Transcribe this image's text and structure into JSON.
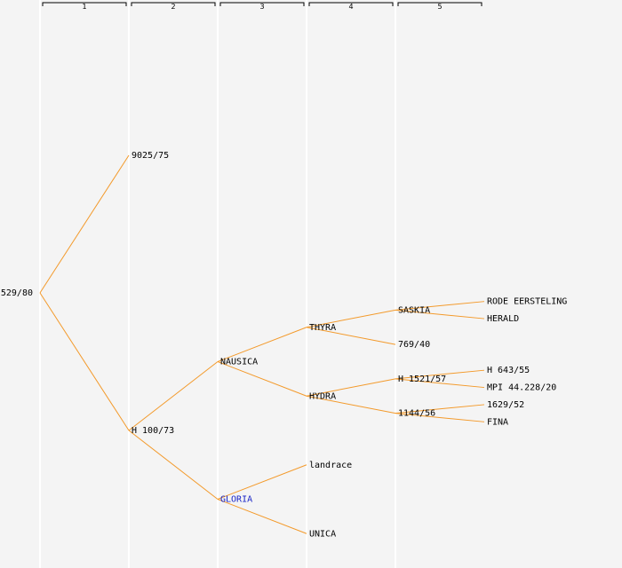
{
  "generations": [
    "1",
    "2",
    "3",
    "4",
    "5"
  ],
  "nodes": [
    {
      "id": "root",
      "label": "529/80",
      "gen": 0,
      "parent": null,
      "link": false
    },
    {
      "id": "n9025",
      "label": "9025/75",
      "gen": 1,
      "parent": "root",
      "link": false
    },
    {
      "id": "nh100",
      "label": "H 100/73",
      "gen": 1,
      "parent": "root",
      "link": false
    },
    {
      "id": "nausica",
      "label": "NAUSICA",
      "gen": 2,
      "parent": "nh100",
      "link": false
    },
    {
      "id": "gloria",
      "label": "GLORIA",
      "gen": 2,
      "parent": "nh100",
      "link": true
    },
    {
      "id": "thyra",
      "label": "THYRA",
      "gen": 3,
      "parent": "nausica",
      "link": false
    },
    {
      "id": "hydra",
      "label": "HYDRA",
      "gen": 3,
      "parent": "nausica",
      "link": false
    },
    {
      "id": "landrace",
      "label": "landrace",
      "gen": 3,
      "parent": "gloria",
      "link": false
    },
    {
      "id": "unica",
      "label": "UNICA",
      "gen": 3,
      "parent": "gloria",
      "link": false
    },
    {
      "id": "saskia",
      "label": "SASKIA",
      "gen": 4,
      "parent": "thyra",
      "link": false
    },
    {
      "id": "n769",
      "label": "769/40",
      "gen": 4,
      "parent": "thyra",
      "link": false
    },
    {
      "id": "h1521",
      "label": "H 1521/57",
      "gen": 4,
      "parent": "hydra",
      "link": false
    },
    {
      "id": "n1144",
      "label": "1144/56",
      "gen": 4,
      "parent": "hydra",
      "link": false
    },
    {
      "id": "rode",
      "label": "RODE EERSTELING",
      "gen": 5,
      "parent": "saskia",
      "link": false
    },
    {
      "id": "herald",
      "label": "HERALD",
      "gen": 5,
      "parent": "saskia",
      "link": false
    },
    {
      "id": "h643",
      "label": "H 643/55",
      "gen": 5,
      "parent": "h1521",
      "link": false
    },
    {
      "id": "mpi",
      "label": "MPI 44.228/20",
      "gen": 5,
      "parent": "h1521",
      "link": false
    },
    {
      "id": "n1629",
      "label": "1629/52",
      "gen": 5,
      "parent": "n1144",
      "link": false
    },
    {
      "id": "fina",
      "label": "FINA",
      "gen": 5,
      "parent": "n1144",
      "link": false
    }
  ]
}
